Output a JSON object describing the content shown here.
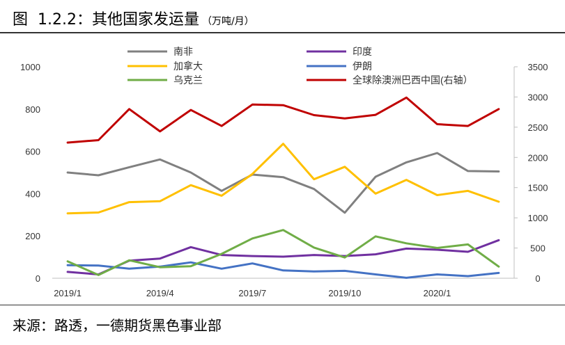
{
  "figure": {
    "title": "图  1.2.2：其他国家发运量",
    "unit": "（万吨/月）",
    "source": "来源：路透，一德期货黑色事业部"
  },
  "chart_data": {
    "type": "line",
    "x_categories": [
      "2019/1",
      "2019/2",
      "2019/3",
      "2019/4",
      "2019/5",
      "2019/6",
      "2019/7",
      "2019/8",
      "2019/9",
      "2019/10",
      "2019/11",
      "2019/12",
      "2020/1",
      "2020/2",
      "2020/3"
    ],
    "x_tick_labels": [
      "2019/1",
      "2019/4",
      "2019/7",
      "2019/10",
      "2020/1"
    ],
    "x_tick_indices": [
      0,
      3,
      6,
      9,
      12
    ],
    "y_left": {
      "min": 0,
      "max": 1000,
      "ticks": [
        "0",
        "200",
        "400",
        "600",
        "800",
        "1000"
      ]
    },
    "y_right": {
      "min": 0,
      "max": 3500,
      "ticks": [
        "0",
        "500",
        "1000",
        "1500",
        "2000",
        "2500",
        "3000",
        "3500"
      ]
    },
    "grid": false,
    "legend_position": "top",
    "series": [
      {
        "name": "南非",
        "color": "#808080",
        "axis": "left",
        "values": [
          500,
          487,
          525,
          562,
          500,
          413,
          490,
          478,
          422,
          310,
          480,
          548,
          592,
          507,
          505
        ]
      },
      {
        "name": "印度",
        "color": "#7030A0",
        "axis": "left",
        "values": [
          30,
          18,
          83,
          93,
          147,
          110,
          105,
          102,
          110,
          105,
          113,
          140,
          135,
          125,
          180
        ]
      },
      {
        "name": "加拿大",
        "color": "#FFC000",
        "axis": "left",
        "values": [
          307,
          311,
          360,
          364,
          440,
          390,
          493,
          636,
          468,
          527,
          400,
          465,
          393,
          413,
          362
        ]
      },
      {
        "name": "伊朗",
        "color": "#4472C4",
        "axis": "left",
        "values": [
          62,
          60,
          45,
          55,
          75,
          45,
          70,
          37,
          32,
          35,
          18,
          2,
          18,
          10,
          25
        ]
      },
      {
        "name": "乌克兰",
        "color": "#70AD47",
        "axis": "left",
        "values": [
          80,
          15,
          85,
          52,
          57,
          115,
          188,
          228,
          145,
          98,
          198,
          165,
          143,
          160,
          55
        ]
      },
      {
        "name": "全球除澳洲巴西中国(右轴）",
        "color": "#C00000",
        "axis": "right",
        "values": [
          2245,
          2285,
          2800,
          2430,
          2785,
          2520,
          2875,
          2865,
          2700,
          2645,
          2705,
          2990,
          2550,
          2520,
          2800
        ]
      }
    ]
  }
}
